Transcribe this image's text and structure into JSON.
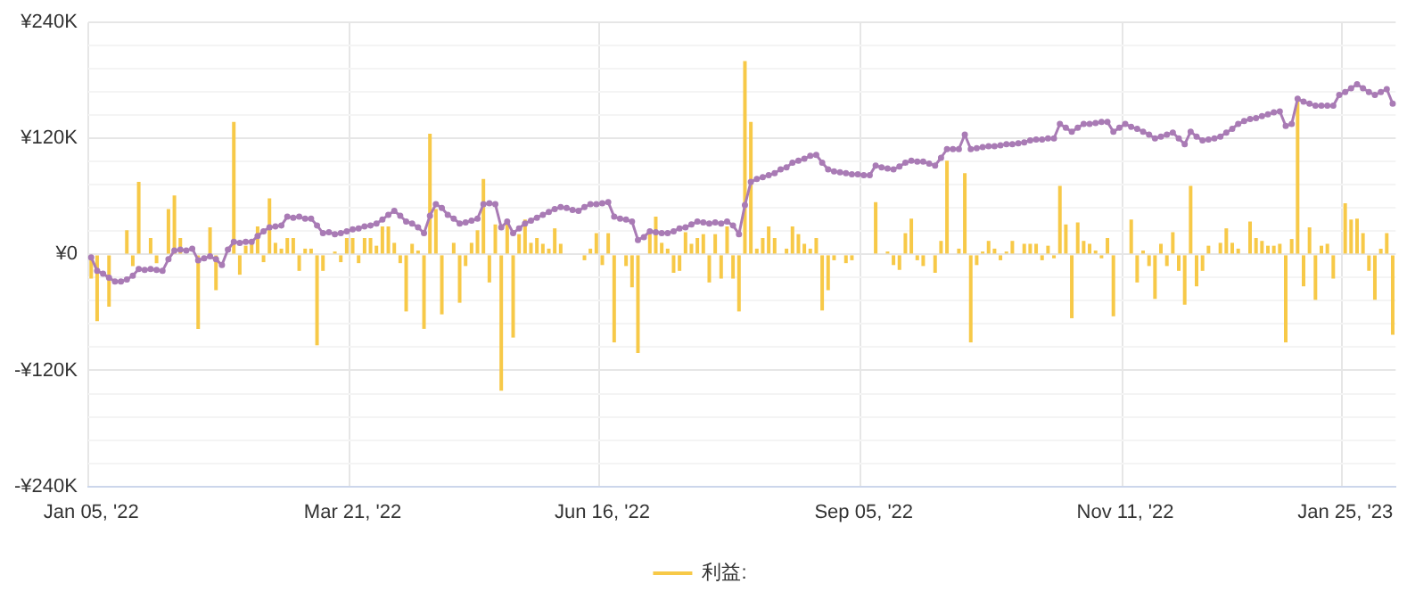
{
  "chart_data": {
    "type": "bar",
    "categories": [
      "Jan 05, '22",
      null,
      null,
      null,
      null,
      null,
      null,
      null,
      null,
      null,
      null,
      null,
      null,
      null,
      null,
      null,
      null,
      null,
      null,
      null,
      null,
      null,
      null,
      null,
      null,
      null,
      null,
      null,
      null,
      null,
      null,
      null,
      null,
      null,
      null,
      null,
      null,
      null,
      null,
      null,
      null,
      null,
      null,
      null,
      "Mar 21, '22",
      null,
      null,
      null,
      null,
      null,
      null,
      null,
      null,
      null,
      null,
      null,
      null,
      null,
      null,
      null,
      null,
      null,
      null,
      null,
      null,
      null,
      null,
      null,
      null,
      null,
      null,
      null,
      null,
      null,
      null,
      null,
      null,
      null,
      null,
      null,
      null,
      null,
      null,
      null,
      null,
      null,
      "Jun 16, '22",
      null,
      null,
      null,
      null,
      null,
      null,
      null,
      null,
      null,
      null,
      null,
      null,
      null,
      null,
      null,
      null,
      null,
      null,
      null,
      null,
      null,
      null,
      null,
      null,
      null,
      null,
      null,
      null,
      null,
      null,
      null,
      null,
      null,
      null,
      null,
      null,
      null,
      null,
      null,
      null,
      null,
      null,
      null,
      "Sep 05, '22",
      null,
      null,
      null,
      null,
      null,
      null,
      null,
      null,
      null,
      null,
      null,
      null,
      null,
      null,
      null,
      null,
      null,
      null,
      null,
      null,
      null,
      null,
      null,
      null,
      null,
      null,
      null,
      null,
      null,
      null,
      null,
      null,
      null,
      null,
      null,
      null,
      null,
      null,
      null,
      null,
      null,
      null,
      null,
      "Nov 11, '22",
      null,
      null,
      null,
      null,
      null,
      null,
      null,
      null,
      null,
      null,
      null,
      null,
      null,
      null,
      null,
      null,
      null,
      null,
      null,
      null,
      null,
      null,
      null,
      null,
      null,
      null,
      null,
      null,
      null,
      null,
      null,
      null,
      null,
      null,
      null,
      null,
      "Jan 25, '23",
      null,
      null,
      null,
      null,
      null,
      null,
      null,
      null
    ],
    "series": [
      {
        "name": "利益:",
        "color": "#f7c948",
        "values": [
          -25,
          -69,
          null,
          -54,
          null,
          null,
          25,
          -12,
          75,
          null,
          17,
          -9,
          null,
          47,
          61,
          17,
          null,
          null,
          -77,
          null,
          28,
          -37,
          null,
          null,
          137,
          -21,
          9,
          14,
          29,
          -8,
          58,
          12,
          6,
          17,
          17,
          -17,
          6,
          6,
          -94,
          -17,
          null,
          3,
          -8,
          17,
          17,
          -9,
          17,
          17,
          9,
          29,
          29,
          12,
          -9,
          -59,
          11,
          4,
          -77,
          125,
          47,
          -62,
          null,
          12,
          -50,
          -12,
          12,
          25,
          78,
          -29,
          31,
          -141,
          33,
          -86,
          21,
          36,
          12,
          17,
          11,
          6,
          27,
          11,
          null,
          null,
          null,
          -6,
          6,
          22,
          -11,
          22,
          -91,
          null,
          -12,
          -34,
          -102,
          null,
          21,
          39,
          12,
          6,
          -19,
          -17,
          23,
          11,
          17,
          21,
          -29,
          21,
          -25,
          29,
          -25,
          -59,
          200,
          137,
          6,
          17,
          29,
          17,
          null,
          6,
          29,
          21,
          11,
          6,
          17,
          -58,
          -37,
          -6,
          null,
          -9,
          -6,
          null,
          null,
          null,
          54,
          null,
          3,
          -11,
          -16,
          22,
          37,
          -6,
          -12,
          null,
          -19,
          14,
          97,
          null,
          6,
          84,
          -91,
          -11,
          3,
          14,
          6,
          -6,
          3,
          14,
          null,
          11,
          11,
          11,
          -6,
          9,
          -4,
          71,
          31,
          -66,
          33,
          14,
          11,
          4,
          -4,
          17,
          -64,
          null,
          null,
          36,
          -29,
          4,
          -12,
          -46,
          11,
          -12,
          23,
          -17,
          -52,
          71,
          -33,
          -17,
          9,
          null,
          12,
          27,
          12,
          6,
          null,
          34,
          17,
          14,
          9,
          9,
          11,
          -91,
          16,
          161,
          -33,
          28,
          -47,
          9,
          11,
          -25,
          null,
          53,
          36,
          37,
          22,
          -17,
          -47,
          6,
          22,
          -83
        ]
      },
      {
        "type": "line",
        "color": "#a97bb5",
        "values": [
          -3,
          -17,
          -20,
          -24,
          -28,
          -28,
          -26,
          -22,
          -15,
          -16,
          -15,
          -16,
          -17,
          -5,
          4,
          5,
          4,
          6,
          -6,
          -4,
          -2,
          -5,
          -11,
          5,
          13,
          12,
          13,
          13,
          19,
          24,
          28,
          29,
          30,
          39,
          38,
          39,
          37,
          37,
          30,
          22,
          23,
          21,
          22,
          24,
          26,
          27,
          29,
          30,
          32,
          36,
          41,
          45,
          40,
          34,
          32,
          28,
          22,
          40,
          52,
          48,
          41,
          37,
          32,
          33,
          35,
          37,
          52,
          53,
          52,
          28,
          34,
          22,
          27,
          32,
          35,
          38,
          41,
          44,
          47,
          49,
          48,
          46,
          45,
          49,
          52,
          52,
          53,
          54,
          39,
          37,
          36,
          34,
          15,
          18,
          24,
          23,
          22,
          22,
          24,
          27,
          28,
          31,
          34,
          33,
          32,
          33,
          32,
          34,
          30,
          21,
          51,
          75,
          78,
          80,
          82,
          84,
          88,
          90,
          95,
          97,
          99,
          102,
          103,
          95,
          88,
          86,
          85,
          84,
          83,
          83,
          82,
          82,
          92,
          90,
          89,
          88,
          91,
          95,
          97,
          96,
          96,
          94,
          92,
          100,
          109,
          109,
          109,
          124,
          109,
          110,
          111,
          112,
          112,
          113,
          114,
          114,
          115,
          116,
          118,
          119,
          119,
          120,
          120,
          135,
          131,
          127,
          131,
          135,
          135,
          136,
          137,
          137,
          127,
          131,
          135,
          132,
          130,
          127,
          124,
          120,
          122,
          124,
          126,
          120,
          114,
          127,
          122,
          118,
          119,
          120,
          122,
          126,
          130,
          135,
          138,
          140,
          141,
          143,
          145,
          147,
          148,
          133,
          135,
          161,
          158,
          156,
          154,
          154,
          154,
          154,
          165,
          168,
          172,
          176,
          172,
          168,
          165,
          168,
          171,
          156
        ]
      }
    ],
    "ylim": [
      -240,
      240
    ],
    "yticks": [
      {
        "value": -240,
        "label": "-¥240K"
      },
      {
        "value": -216,
        "label": null
      },
      {
        "value": -192,
        "label": null
      },
      {
        "value": -168,
        "label": null
      },
      {
        "value": -144,
        "label": null
      },
      {
        "value": -120,
        "label": "-¥120K"
      },
      {
        "value": -96,
        "label": null
      },
      {
        "value": -72,
        "label": null
      },
      {
        "value": -48,
        "label": null
      },
      {
        "value": -24,
        "label": null
      },
      {
        "value": 0,
        "label": "¥0"
      },
      {
        "value": 24,
        "label": null
      },
      {
        "value": 48,
        "label": null
      },
      {
        "value": 72,
        "label": null
      },
      {
        "value": 96,
        "label": null
      },
      {
        "value": 120,
        "label": "¥120K"
      },
      {
        "value": 144,
        "label": null
      },
      {
        "value": 168,
        "label": null
      },
      {
        "value": 192,
        "label": null
      },
      {
        "value": 216,
        "label": null
      },
      {
        "value": 240,
        "label": "¥240K"
      }
    ],
    "grid": true,
    "legend": "bottom",
    "marker": "circle"
  }
}
